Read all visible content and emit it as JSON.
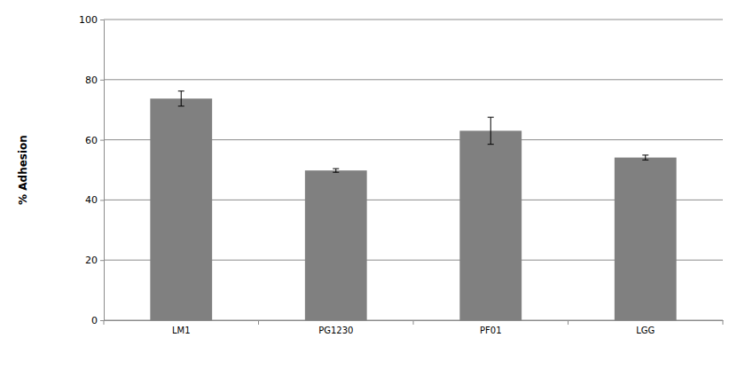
{
  "chart_data": {
    "type": "bar",
    "y_label": "% Adhesion",
    "categories": [
      "LM1",
      "PG1230",
      "PF01",
      "LGG"
    ],
    "values": [
      73.7,
      49.8,
      63.0,
      54.1
    ],
    "errors": [
      2.5,
      0.6,
      4.5,
      0.8
    ],
    "color": "#808080",
    "ylim": [
      0,
      100
    ],
    "yticks": [
      0,
      20,
      40,
      60,
      80,
      100
    ],
    "grid": true
  }
}
